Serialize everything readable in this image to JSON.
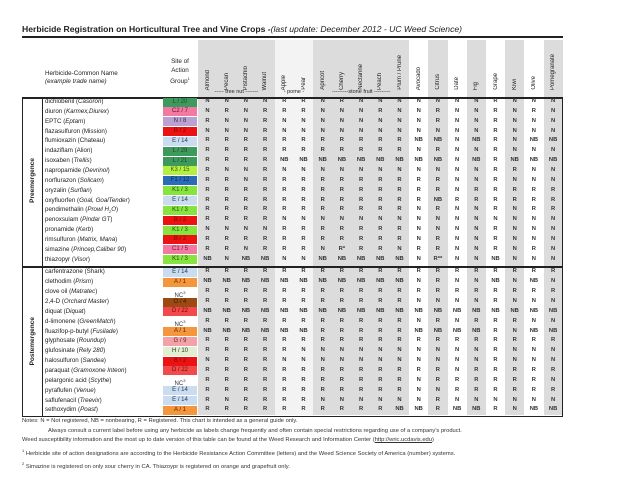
{
  "title": {
    "main": "Herbicide Registration on Horticultural Tree and Vine Crops -",
    "italic": "(last update: December 2012  - UC Weed Science)"
  },
  "header": {
    "name_line1": "Herbicide-Common Name",
    "name_line2": "(example trade name)",
    "group_line1": "Site of",
    "group_line2": "Action",
    "group_line3": "Group",
    "group_sup": "1"
  },
  "crops": [
    "Almond",
    "Pecan",
    "Pistachio",
    "Walnut",
    "Apple",
    "Pear",
    "Apricot",
    "Cherry",
    "Nectarine",
    "Peach",
    "Plum / Prune",
    "Avocado",
    "Citrus",
    "Date",
    "Fig",
    "Grape",
    "Kiwi",
    "Olive",
    "Pomegranate"
  ],
  "crop_groups": [
    {
      "label": "----- tree nut -------",
      "first": 0,
      "last": 3
    },
    {
      "label": "- pome -",
      "first": 4,
      "last": 5
    },
    {
      "label": "---------stone fruit ---------",
      "first": 6,
      "last": 10
    }
  ],
  "column_shading": [
    "grey",
    "grey",
    "grey",
    "grey",
    "light",
    "light",
    "grey",
    "grey",
    "grey",
    "grey",
    "grey",
    "white",
    "grey",
    "white",
    "grey",
    "white",
    "grey",
    "white",
    "grey"
  ],
  "sections": [
    {
      "label": "Preemergence",
      "rows": [
        {
          "name": "dichlobenil",
          "trade": "Casoron",
          "group": "L / 20",
          "color": "#3d9a5c",
          "text": "#1d4a2c",
          "values": "N N N N R R N R N N N N N N N R N N N"
        },
        {
          "name": "diuron",
          "trade": "Karmex,Diurex",
          "group": "C2 / 7",
          "color": "#f27aa2",
          "text": "#6a1030",
          "values": "N R N R R R N N N R N N R N N R N R N"
        },
        {
          "name": "EPTC",
          "trade": "Eptam",
          "group": "N / 8",
          "color": "#b9a2d2",
          "text": "#3a2a5a",
          "values": "R N N R N N N N N N N N R N N R N N N"
        },
        {
          "name": "flazasulfuron",
          "trade": "Mission",
          "plain": true,
          "group": "B / 2",
          "color": "#ea1212",
          "text": "#8a0000",
          "values": "N N N R N N N N N N N N N N N R N N N"
        },
        {
          "name": "flumioxazin",
          "trade": "Chateau",
          "plain": true,
          "group": "E / 14",
          "color": "#c9dcf0",
          "text": "#2a3a5a",
          "values": "R R R R R R R R R R R NB NB N NB R N NB NB"
        },
        {
          "name": "indaziflam",
          "trade": "Alion",
          "plain": true,
          "group": "L / 29",
          "color": "#3d9a5c",
          "text": "#1d4a2c",
          "values": "R R R R R R R R R R R N R N N R N N N"
        },
        {
          "name": "isoxaben",
          "trade": "Trellis",
          "group": "L / 21",
          "color": "#3d9a5c",
          "text": "#1d4a2c",
          "values": "R R R R NB NB NB NB NB NB NB NB NB N NB R NB NB NB"
        },
        {
          "name": "napropamide",
          "trade": "Devrinol",
          "group": "K3 / 15",
          "color": "#b4f040",
          "text": "#3a5a10",
          "values": "R N N R N N N N N N N N N N N R R N N"
        },
        {
          "name": "norflurazon",
          "trade": "Solicam",
          "group": "F1 / 12",
          "color": "#2a6cb8",
          "text": "#0a2a5a",
          "values": "R R N R R R R R R R R R R N N R N N N"
        },
        {
          "name": "oryzalin",
          "trade": "Surflan",
          "group": "K1 / 3",
          "color": "#86e43e",
          "text": "#2a4a10",
          "values": "R R R R R R R R R R R R R N R R R R R"
        },
        {
          "name": "oxyfluorfen",
          "trade": "Goal, GoalTender",
          "group": "E / 14",
          "color": "#c9dcf0",
          "text": "#2a3a5a",
          "values": "R R R R R R R R R R R R NB R R R R R R"
        },
        {
          "name": "pendimethalin",
          "trade": "Prowl H",
          "trade_sub": "2",
          "trade_tail": "O",
          "group": "K1 / 3",
          "color": "#86e43e",
          "text": "#2a4a10",
          "values": "R R R R R R R R R R R N R N N R N R R"
        },
        {
          "name": "penoxsulam",
          "trade": "Pindar GT",
          "group": "B / 2",
          "color": "#ea1212",
          "text": "#8a0000",
          "values": "R R R R N N N N N N N N N N N N N N N"
        },
        {
          "name": "pronamide",
          "trade": "Kerb",
          "group": "K1 / 3",
          "color": "#86e43e",
          "text": "#2a4a10",
          "values": "N N N N R R R R R R R N N N N R N N N"
        },
        {
          "name": "rimsulfuron",
          "trade": "Matrix, Mana",
          "group": "B / 2",
          "color": "#ea1212",
          "text": "#8a0000",
          "values": "R R R R R R R R R R R N R N N R N N N"
        },
        {
          "name": "simazine",
          "trade": "Princep,Caliber 90",
          "group": "C1 / 5",
          "color": "#f27aa2",
          "text": "#6a1030",
          "values": "R R N R R R N R* R R N R R N N R N R N"
        },
        {
          "name": "thiazopyr",
          "trade": "Visor",
          "group": "K1 / 3",
          "color": "#86e43e",
          "text": "#2a4a10",
          "values": "NB N NB NB N N NB NB NB NB NB N R** N N NB N N N"
        }
      ]
    },
    {
      "label": "Postemergence",
      "rows": [
        {
          "name": "carfentrazone",
          "trade": "Shark",
          "plain": true,
          "group": "E / 14",
          "color": "#c9dcf0",
          "text": "#2a3a5a",
          "values": "R R R R R R R R R R R R R R R R R R R"
        },
        {
          "name": "clethodim",
          "trade": "Prism",
          "group": "A / 1",
          "color": "#f3963c",
          "text": "#5a2a00",
          "values": "NB NB NB NB NB NB NB NB NB NB NB N R N N NB N NB N"
        },
        {
          "name": "clove oil",
          "trade": "Matratec",
          "group": "NC",
          "group_sup": "3",
          "color": "#ffffff",
          "text": "#333",
          "values": "R R R R R R R R R R R R R R R R R R R"
        },
        {
          "name": "2,4-D",
          "trade": "Orchard Master",
          "group": "O / 4",
          "color": "#9a4a12",
          "text": "#3a1a00",
          "values": "R R R R R R R R R R R N N N N R N N N"
        },
        {
          "name": "diquat",
          "trade": "Diquat",
          "group": "D / 22",
          "color": "#f24a4a",
          "text": "#6a0a0a",
          "values": "NB NB NB NB NB NB NB NB NB NB NB NB NB NB NB NB NB NB NB"
        },
        {
          "name": "d-limonene",
          "trade": "GreenMatch",
          "group": "NC",
          "group_sup": "3",
          "color": "#ffffff",
          "text": "#333",
          "values": "R R R R R R R R R R R N R N R R R N N"
        },
        {
          "name": "fluazifop-p-butyl",
          "trade": "Fusilade",
          "group": "A / 1",
          "color": "#f3963c",
          "text": "#5a2a00",
          "values": "NB NB NB NB NB NB R R R R R NB NB NB NB R N NB NB"
        },
        {
          "name": "glyphosate",
          "trade": "Roundup",
          "group": "G / 9",
          "color": "#f4a2aa",
          "text": "#6a1a20",
          "values": "R R R R R R R R R R R R R R R R R R R"
        },
        {
          "name": "glufosinate",
          "trade": "Rely 280",
          "group": "H / 10",
          "color": "#e2edd2",
          "text": "#2a3a1a",
          "values": "R R R R R N N N N N N N N N N R N N N"
        },
        {
          "name": "halosulfuron",
          "trade": "Sandea",
          "group": "B / 2",
          "color": "#ea1212",
          "text": "#8a0000",
          "values": "N R R R N N N N N N N N N N N R N N N"
        },
        {
          "name": "paraquat",
          "trade": "Gramoxone Inteon",
          "group": "D / 22",
          "color": "#f24a4a",
          "text": "#6a0a0a",
          "values": "R R R R R R R R R R R R R N R R R R R"
        },
        {
          "name": "pelargonic acid",
          "trade": "Scythe",
          "group": "NC",
          "group_sup": "3",
          "color": "#ffffff",
          "text": "#333",
          "values": "R R R R R R R R R R R N R R R R R R N"
        },
        {
          "name": "pyraflufen",
          "trade": "Venue",
          "group": "E / 14",
          "color": "#c9dcf0",
          "text": "#2a3a5a",
          "values": "R R R R R R R R R R R N N R R R R R R"
        },
        {
          "name": "saflufenacil",
          "trade": "Treevix",
          "group": "E / 14",
          "color": "#c9dcf0",
          "text": "#2a3a5a",
          "values": "R N R R R R N N N N N N R N N N N N N"
        },
        {
          "name": "sethoxydim",
          "trade": "Poast",
          "group": "A / 1",
          "color": "#f3963c",
          "text": "#5a2a00",
          "values": "R R R R R R R R R R NB NB R NB NB R N NB NB"
        }
      ]
    }
  ],
  "notes": {
    "line1": "Notes: N = Not registered, NB = nonbearing, R = Registered. This chart is intended as a general guide only.",
    "line2": "Always consult a current label before using any herbicide as labels change frequently and often contain special restrictions regarding use of a company's product.",
    "line3": "Weed susceptibility information and the most up to date version of this table can be found at the Weed Research and Information Center (",
    "link": "http://wric.ucdavis.edu",
    "line3_end": ")",
    "fn1_mark": "1",
    "fn1": " Herbicide site of action designations are according to the Herbicide Resistance Action Committee (letters) and the Weed Science Society of America (number) systems.",
    "fn2_mark": "2",
    "fn2": " Simazine is registered on only sour cherry in CA.  Thiazoypr is registered on orange and grapefruit only."
  }
}
